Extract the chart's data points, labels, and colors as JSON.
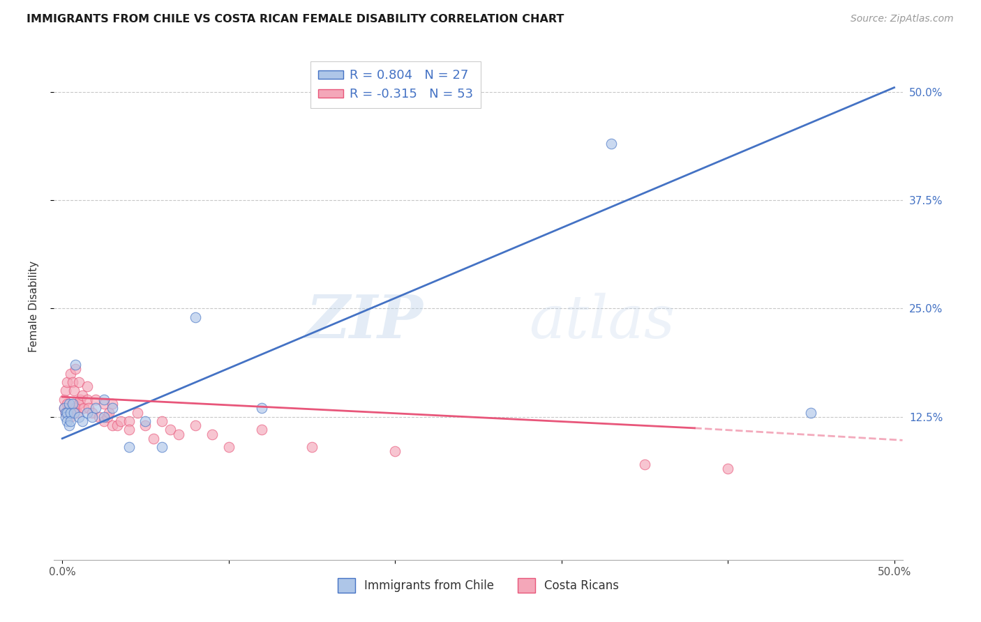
{
  "title": "IMMIGRANTS FROM CHILE VS COSTA RICAN FEMALE DISABILITY CORRELATION CHART",
  "source": "Source: ZipAtlas.com",
  "ylabel": "Female Disability",
  "y_ticks": [
    0.125,
    0.25,
    0.375,
    0.5
  ],
  "y_tick_labels": [
    "12.5%",
    "25.0%",
    "37.5%",
    "50.0%"
  ],
  "x_ticks": [
    0.0,
    0.1,
    0.2,
    0.3,
    0.4,
    0.5
  ],
  "x_tick_labels": [
    "0.0%",
    "",
    "",
    "",
    "",
    "50.0%"
  ],
  "xlim": [
    -0.005,
    0.505
  ],
  "ylim": [
    -0.04,
    0.545
  ],
  "legend_top": [
    {
      "label": "R = 0.804   N = 27",
      "face": "#aec6e8",
      "edge": "#4472c4"
    },
    {
      "label": "R = -0.315   N = 53",
      "face": "#f4a7b9",
      "edge": "#e8567a"
    }
  ],
  "legend_bottom": [
    {
      "label": "Immigrants from Chile",
      "face": "#aec6e8",
      "edge": "#4472c4"
    },
    {
      "label": "Costa Ricans",
      "face": "#f4a7b9",
      "edge": "#e8567a"
    }
  ],
  "blue_scatter_x": [
    0.001,
    0.002,
    0.002,
    0.003,
    0.003,
    0.004,
    0.004,
    0.005,
    0.005,
    0.006,
    0.007,
    0.008,
    0.01,
    0.012,
    0.015,
    0.018,
    0.02,
    0.025,
    0.025,
    0.03,
    0.04,
    0.05,
    0.06,
    0.08,
    0.12,
    0.33,
    0.45
  ],
  "blue_scatter_y": [
    0.135,
    0.13,
    0.125,
    0.13,
    0.12,
    0.115,
    0.14,
    0.13,
    0.12,
    0.14,
    0.13,
    0.185,
    0.125,
    0.12,
    0.13,
    0.125,
    0.135,
    0.125,
    0.145,
    0.135,
    0.09,
    0.12,
    0.09,
    0.24,
    0.135,
    0.44,
    0.13
  ],
  "pink_scatter_x": [
    0.001,
    0.001,
    0.002,
    0.002,
    0.003,
    0.003,
    0.004,
    0.004,
    0.005,
    0.005,
    0.005,
    0.006,
    0.006,
    0.007,
    0.007,
    0.008,
    0.008,
    0.009,
    0.01,
    0.01,
    0.011,
    0.012,
    0.013,
    0.015,
    0.015,
    0.016,
    0.018,
    0.02,
    0.022,
    0.025,
    0.025,
    0.027,
    0.028,
    0.03,
    0.03,
    0.033,
    0.035,
    0.04,
    0.04,
    0.045,
    0.05,
    0.055,
    0.06,
    0.065,
    0.07,
    0.08,
    0.09,
    0.1,
    0.12,
    0.15,
    0.2,
    0.35,
    0.4
  ],
  "pink_scatter_y": [
    0.135,
    0.145,
    0.13,
    0.155,
    0.14,
    0.165,
    0.13,
    0.135,
    0.125,
    0.13,
    0.175,
    0.135,
    0.165,
    0.14,
    0.155,
    0.135,
    0.18,
    0.13,
    0.165,
    0.14,
    0.145,
    0.15,
    0.135,
    0.145,
    0.16,
    0.135,
    0.13,
    0.145,
    0.125,
    0.14,
    0.12,
    0.125,
    0.13,
    0.14,
    0.115,
    0.115,
    0.12,
    0.12,
    0.11,
    0.13,
    0.115,
    0.1,
    0.12,
    0.11,
    0.105,
    0.115,
    0.105,
    0.09,
    0.11,
    0.09,
    0.085,
    0.07,
    0.065
  ],
  "blue_line": {
    "x": [
      0.0,
      0.5
    ],
    "y": [
      0.1,
      0.505
    ]
  },
  "pink_line_solid": {
    "x": [
      0.0,
      0.38
    ],
    "y": [
      0.148,
      0.112
    ]
  },
  "pink_line_dashed": {
    "x": [
      0.38,
      0.505
    ],
    "y": [
      0.112,
      0.098
    ]
  },
  "blue_color": "#4472c4",
  "pink_color": "#e8567a",
  "blue_scatter_color": "#aec6e8",
  "pink_scatter_color": "#f4a7b9",
  "watermark_zip": "ZIP",
  "watermark_atlas": "atlas",
  "grid_color": "#c8c8c8",
  "background_color": "#ffffff",
  "title_fontsize": 11.5,
  "tick_fontsize": 11,
  "ylabel_fontsize": 11,
  "scatter_size": 110,
  "scatter_alpha": 0.65,
  "line_width": 2.0
}
